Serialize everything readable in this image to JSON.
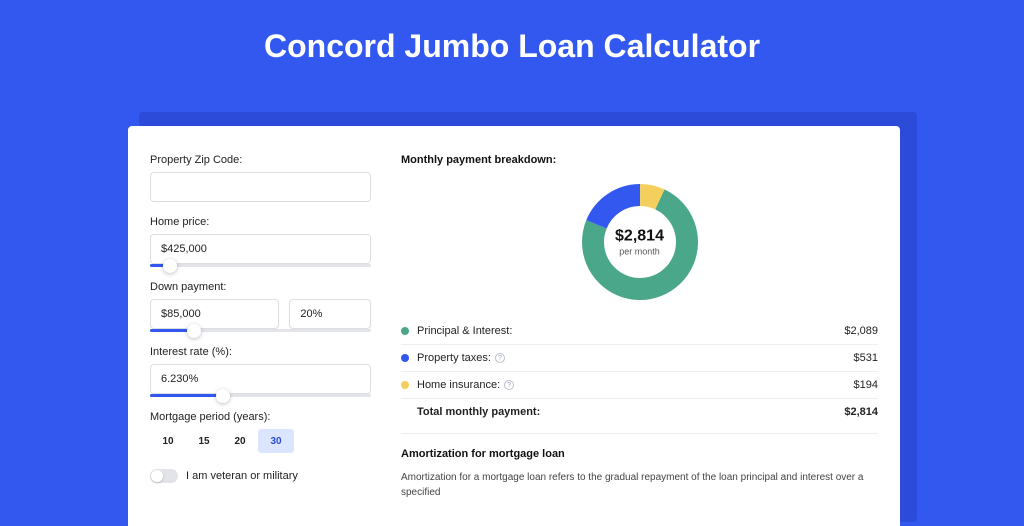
{
  "page": {
    "title": "Concord Jumbo Loan Calculator",
    "background": "#3258f0",
    "shadow_color": "#2b4bd8"
  },
  "form": {
    "zip": {
      "label": "Property Zip Code:",
      "value": ""
    },
    "home_price": {
      "label": "Home price:",
      "value": "$425,000",
      "slider_pct": 9
    },
    "down_payment": {
      "label": "Down payment:",
      "amount": "$85,000",
      "percent": "20%",
      "slider_pct": 20
    },
    "interest_rate": {
      "label": "Interest rate (%):",
      "value": "6.230%",
      "slider_pct": 33
    },
    "mortgage_period": {
      "label": "Mortgage period (years):",
      "options": [
        "10",
        "15",
        "20",
        "30"
      ],
      "selected": "30"
    },
    "veteran": {
      "label": "I am veteran or military",
      "on": false
    }
  },
  "breakdown": {
    "title": "Monthly payment breakdown:",
    "donut": {
      "amount": "$2,814",
      "sub": "per month",
      "slices": [
        {
          "name": "principal_interest",
          "pct": 74.2,
          "color": "#4aa78a"
        },
        {
          "name": "property_taxes",
          "pct": 18.9,
          "color": "#3258f0"
        },
        {
          "name": "home_insurance",
          "pct": 6.9,
          "color": "#f4cf5d"
        }
      ],
      "thickness": 22,
      "bg": "#ffffff"
    },
    "rows": [
      {
        "dot": "#4aa78a",
        "label": "Principal & Interest:",
        "info": false,
        "value": "$2,089"
      },
      {
        "dot": "#3258f0",
        "label": "Property taxes:",
        "info": true,
        "value": "$531"
      },
      {
        "dot": "#f4cf5d",
        "label": "Home insurance:",
        "info": true,
        "value": "$194"
      }
    ],
    "total": {
      "label": "Total monthly payment:",
      "value": "$2,814"
    }
  },
  "amortization": {
    "title": "Amortization for mortgage loan",
    "text": "Amortization for a mortgage loan refers to the gradual repayment of the loan principal and interest over a specified"
  }
}
